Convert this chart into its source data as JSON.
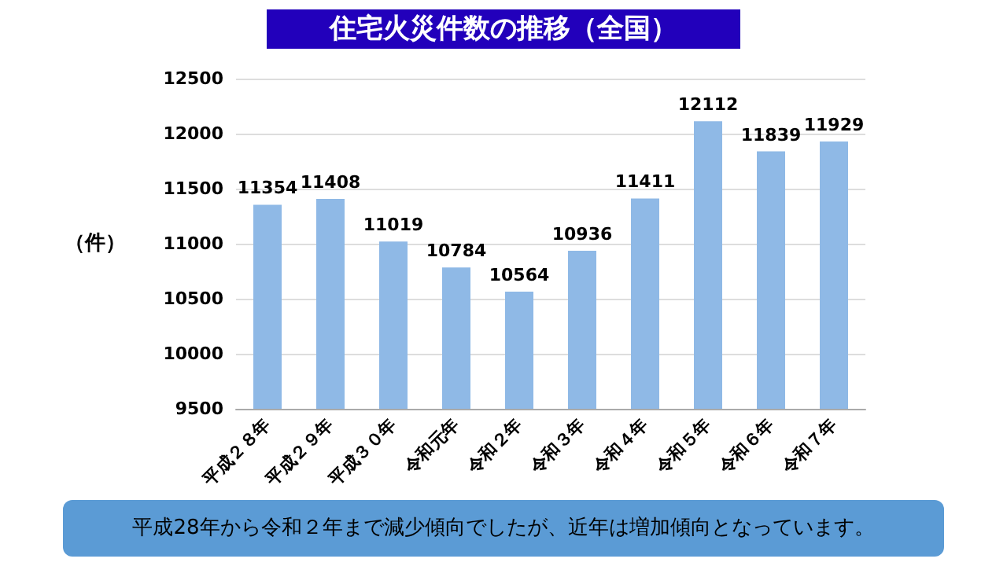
{
  "chart_data": {
    "type": "bar",
    "title": "住宅火災件数の推移（全国）",
    "ylabel": "（件）",
    "categories": [
      "平成２８年",
      "平成２９年",
      "平成３０年",
      "令和元年",
      "令和２年",
      "令和３年",
      "令和４年",
      "令和５年",
      "令和６年",
      "令和７年"
    ],
    "values": [
      11354,
      11408,
      11019,
      10784,
      10564,
      10936,
      11411,
      12112,
      11839,
      11929
    ],
    "color": "#8fb9e6",
    "ylim": [
      9500,
      12500
    ],
    "yticks": [
      9500,
      10000,
      10500,
      11000,
      11500,
      12000,
      12500
    ],
    "grid": "y",
    "data_labels": true,
    "annotations": [
      "平成28年から令和２年まで減少傾向でしたが、近年は増加傾向となっています。"
    ]
  }
}
